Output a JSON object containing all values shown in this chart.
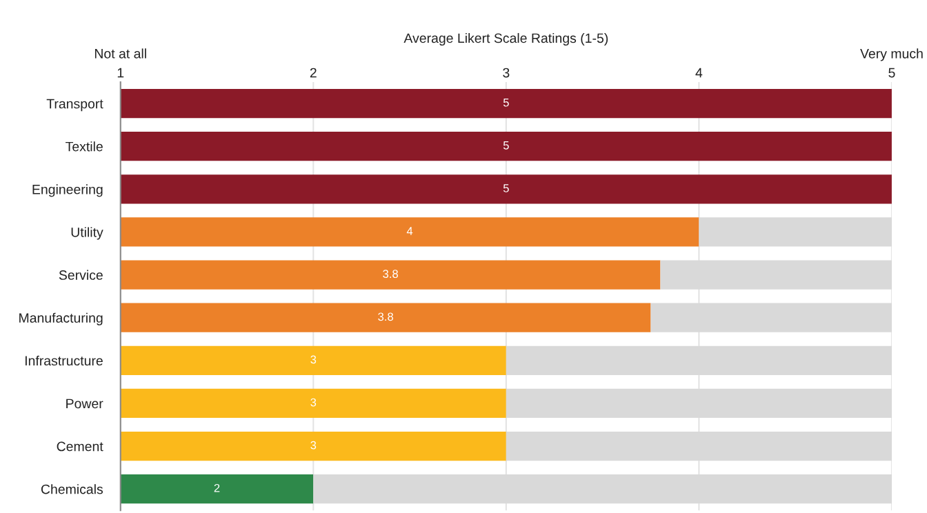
{
  "chart_data": {
    "type": "bar",
    "orientation": "horizontal",
    "stacked": true,
    "xlabel": "Average Likert Scale Ratings (1-5)",
    "categories": [
      "Transport",
      "Textile",
      "Engineering",
      "Utility",
      "Service",
      "Manufacturing",
      "Infrastructure",
      "Power",
      "Cement",
      "Chemicals"
    ],
    "series": [
      {
        "colors": [
          "#8b1a28",
          "#8b1a28",
          "#8b1a28",
          "#ec8129",
          "#ec8129",
          "#ec8129",
          "#fbb91b",
          "#fbb91b",
          "#fbb91b",
          "#2e894a"
        ],
        "values": [
          5,
          5,
          5,
          4,
          3.8,
          3.75,
          3,
          3,
          3,
          2
        ],
        "value_labels": [
          "5",
          "5",
          "5",
          "4",
          "3.8",
          "3.8",
          "3",
          "3",
          "3",
          "2"
        ]
      },
      {
        "color": "#d9d9d9",
        "values": [
          null,
          null,
          null,
          1,
          1.2,
          1.25,
          2,
          2,
          2,
          3
        ]
      }
    ],
    "xlim": [
      1,
      5
    ],
    "xticks": [
      1,
      2,
      3,
      4,
      5
    ],
    "grid": "x",
    "annotations": [
      "Not at all",
      "Very much"
    ]
  }
}
